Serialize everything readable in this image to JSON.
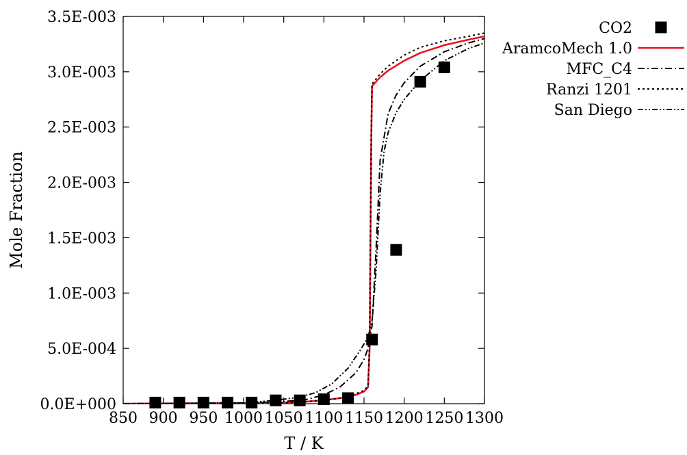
{
  "chart_data": {
    "type": "line",
    "xlabel": "T / K",
    "ylabel": "Mole Fraction",
    "xlim": [
      850,
      1300
    ],
    "ylim": [
      0,
      0.0035
    ],
    "x_ticks": [
      850,
      900,
      950,
      1000,
      1050,
      1100,
      1150,
      1200,
      1250,
      1300
    ],
    "x_tick_labels": [
      "850",
      "900",
      "950",
      "1000",
      "1050",
      "1100",
      "1150",
      "1200",
      "1250",
      "1300"
    ],
    "y_ticks": [
      0,
      0.0005,
      0.001,
      0.0015,
      0.002,
      0.0025,
      0.003,
      0.0035
    ],
    "y_tick_labels": [
      "0.0E+000",
      "5.0E-004",
      "1.0E-003",
      "1.5E-003",
      "2.0E-003",
      "2.5E-003",
      "3.0E-003",
      "3.5E-003"
    ],
    "grid": false,
    "legend_position": "outside-top-right",
    "series": [
      {
        "name": "CO2",
        "kind": "scatter",
        "marker": "filled-square",
        "color": "#000000",
        "x": [
          890,
          920,
          950,
          980,
          1010,
          1040,
          1070,
          1100,
          1130,
          1160,
          1190,
          1220,
          1250
        ],
        "y": [
          1e-05,
          1e-05,
          1e-05,
          1e-05,
          1e-05,
          3e-05,
          3e-05,
          4e-05,
          5e-05,
          0.00058,
          0.00139,
          0.00291,
          0.00304
        ]
      },
      {
        "name": "AramcoMech 1.0",
        "kind": "line",
        "style": "solid",
        "color": "#e8141e",
        "x": [
          850,
          1000,
          1050,
          1080,
          1100,
          1120,
          1140,
          1150,
          1155,
          1157,
          1159,
          1160,
          1170,
          1180,
          1200,
          1220,
          1250,
          1280,
          1300
        ],
        "y": [
          0,
          5e-06,
          1e-05,
          2e-05,
          3e-05,
          5e-05,
          8e-05,
          0.00011,
          0.00015,
          0.0005,
          0.0024,
          0.00287,
          0.00295,
          0.00301,
          0.0031,
          0.00317,
          0.00324,
          0.00329,
          0.00332
        ]
      },
      {
        "name": "MFC_C4",
        "kind": "line",
        "style": "dash-dot",
        "color": "#000000",
        "x": [
          850,
          1000,
          1050,
          1080,
          1100,
          1120,
          1140,
          1150,
          1155,
          1160,
          1165,
          1170,
          1180,
          1190,
          1200,
          1220,
          1250,
          1280,
          1300
        ],
        "y": [
          0,
          5e-06,
          2e-05,
          4e-05,
          8e-05,
          0.00015,
          0.00028,
          0.0004,
          0.0005,
          0.0007,
          0.0014,
          0.0022,
          0.00262,
          0.00279,
          0.0029,
          0.00305,
          0.00318,
          0.00326,
          0.0033
        ]
      },
      {
        "name": "Ranzi 1201",
        "kind": "line",
        "style": "dotted",
        "color": "#000000",
        "x": [
          850,
          1000,
          1050,
          1080,
          1100,
          1120,
          1140,
          1150,
          1155,
          1157,
          1159,
          1160,
          1170,
          1180,
          1200,
          1220,
          1250,
          1280,
          1300
        ],
        "y": [
          0,
          5e-06,
          1e-05,
          2e-05,
          3e-05,
          5e-05,
          9e-05,
          0.00012,
          0.00016,
          0.0006,
          0.0025,
          0.00289,
          0.00298,
          0.00305,
          0.00315,
          0.00322,
          0.00328,
          0.00332,
          0.00335
        ]
      },
      {
        "name": "San Diego",
        "kind": "line",
        "style": "dash-dot-dot",
        "color": "#000000",
        "x": [
          850,
          1000,
          1040,
          1070,
          1090,
          1110,
          1130,
          1145,
          1155,
          1160,
          1165,
          1170,
          1175,
          1180,
          1190,
          1200,
          1220,
          1250,
          1280,
          1300
        ],
        "y": [
          0,
          8e-06,
          3e-05,
          6e-05,
          0.0001,
          0.00018,
          0.00032,
          0.00048,
          0.0006,
          0.00075,
          0.0012,
          0.0019,
          0.00228,
          0.00245,
          0.00263,
          0.00275,
          0.00292,
          0.0031,
          0.00321,
          0.00326
        ]
      }
    ]
  }
}
